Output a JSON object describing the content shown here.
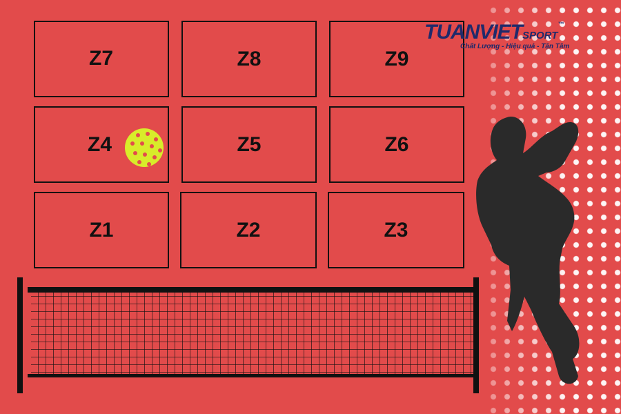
{
  "zones": [
    {
      "label": "Z7"
    },
    {
      "label": "Z8"
    },
    {
      "label": "Z9"
    },
    {
      "label": "Z4"
    },
    {
      "label": "Z5"
    },
    {
      "label": "Z6"
    },
    {
      "label": "Z1"
    },
    {
      "label": "Z2"
    },
    {
      "label": "Z3"
    }
  ],
  "ball_zone": "Z4",
  "logo": {
    "brand": "TUANVIET",
    "suffix": "SPORT",
    "tm": "™",
    "tagline": "Chất Lượng - Hiệu quả - Tận Tâm"
  },
  "colors": {
    "background": "#e24b4b",
    "lines": "#111111",
    "ball": "#d8ec2a",
    "logo": "#1f2a6b"
  }
}
